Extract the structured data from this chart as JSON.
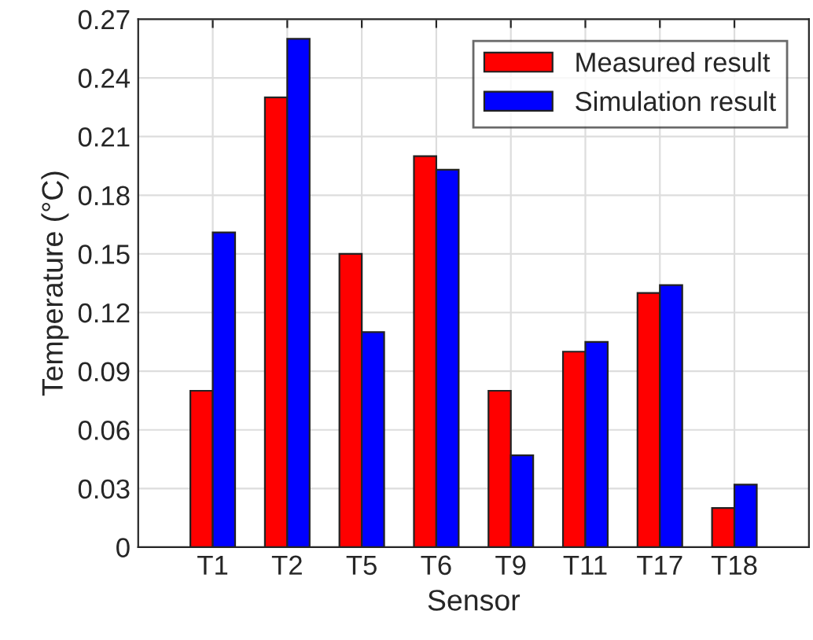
{
  "chart_data": {
    "type": "bar",
    "xlabel": "Sensor",
    "ylabel": "Temperature (°C)",
    "categories": [
      "T1",
      "T2",
      "T5",
      "T6",
      "T9",
      "T11",
      "T17",
      "T18"
    ],
    "series": [
      {
        "name": "Measured result",
        "color": "#ff0000",
        "values": [
          0.08,
          0.23,
          0.15,
          0.2,
          0.08,
          0.1,
          0.13,
          0.02
        ]
      },
      {
        "name": "Simulation result",
        "color": "#0000ff",
        "values": [
          0.161,
          0.26,
          0.11,
          0.193,
          0.047,
          0.105,
          0.134,
          0.032
        ]
      }
    ],
    "ylim": [
      0,
      0.27
    ],
    "yticks": [
      {
        "value": 0,
        "label": "0"
      },
      0.03,
      0.06,
      0.09,
      0.12,
      0.15,
      0.18,
      0.21,
      0.24,
      0.27
    ],
    "grid": true,
    "legend": "top right"
  }
}
